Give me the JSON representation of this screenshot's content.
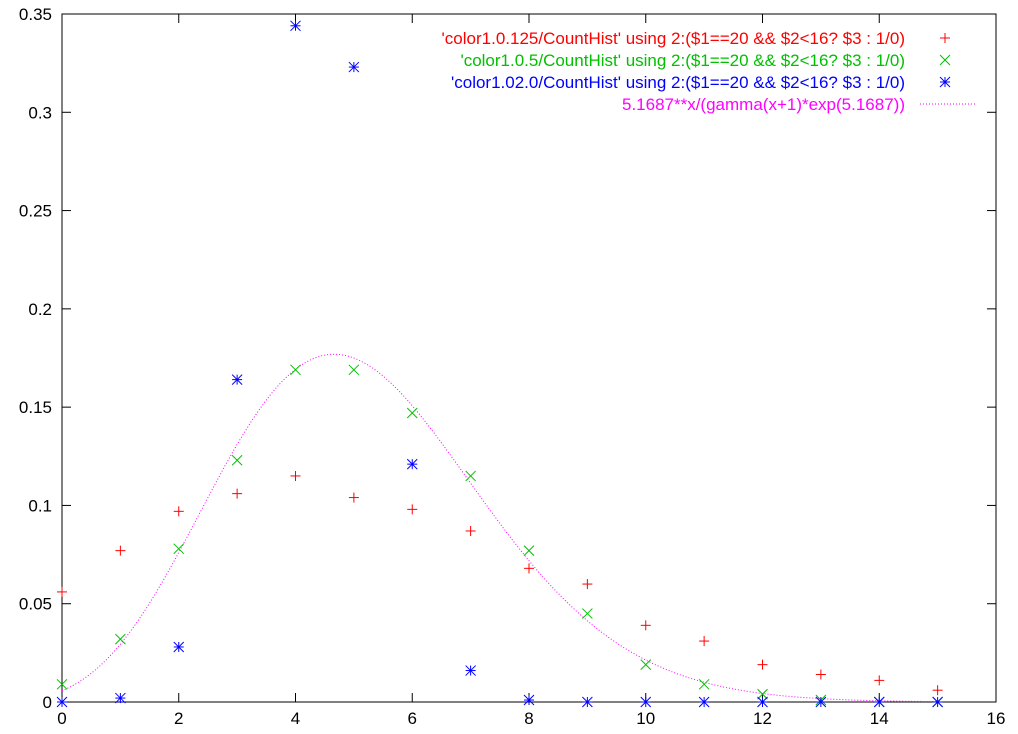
{
  "chart_data": {
    "type": "scatter",
    "title": "",
    "xlabel": "",
    "ylabel": "",
    "xlim": [
      0,
      16
    ],
    "ylim": [
      0,
      0.35
    ],
    "xticks": [
      0,
      2,
      4,
      6,
      8,
      10,
      12,
      14,
      16
    ],
    "yticks": [
      0,
      0.05,
      0.1,
      0.15,
      0.2,
      0.25,
      0.3,
      0.35
    ],
    "xtick_labels": [
      "0",
      "2",
      "4",
      "6",
      "8",
      "10",
      "12",
      "14",
      "16"
    ],
    "ytick_labels": [
      "0",
      "0.05",
      "0.1",
      "0.15",
      "0.2",
      "0.25",
      "0.3",
      "0.35"
    ],
    "grid": false,
    "legend_position": "top-right",
    "series": [
      {
        "name": "'color1.0.125/CountHist' using 2:($1==20 && $2<16? $3 : 1/0)",
        "marker": "plus",
        "color": "#ff0000",
        "x": [
          0,
          1,
          2,
          3,
          4,
          5,
          6,
          7,
          8,
          9,
          10,
          11,
          12,
          13,
          14,
          15
        ],
        "y": [
          0.056,
          0.077,
          0.097,
          0.106,
          0.115,
          0.104,
          0.098,
          0.087,
          0.068,
          0.06,
          0.039,
          0.031,
          0.019,
          0.014,
          0.011,
          0.006
        ]
      },
      {
        "name": "'color1.0.5/CountHist' using 2:($1==20 && $2<16? $3 : 1/0)",
        "marker": "cross",
        "color": "#00c000",
        "x": [
          0,
          1,
          2,
          3,
          4,
          5,
          6,
          7,
          8,
          9,
          10,
          11,
          12,
          13,
          14,
          15
        ],
        "y": [
          0.009,
          0.032,
          0.078,
          0.123,
          0.169,
          0.169,
          0.147,
          0.115,
          0.077,
          0.045,
          0.019,
          0.009,
          0.004,
          0.001,
          0.0,
          0.0
        ]
      },
      {
        "name": "'color1.02.0/CountHist' using 2:($1==20 && $2<16? $3 : 1/0)",
        "marker": "star",
        "color": "#0000ff",
        "x": [
          0,
          1,
          2,
          3,
          4,
          5,
          6,
          7,
          8,
          9,
          10,
          11,
          12,
          13,
          14,
          15
        ],
        "y": [
          0.0,
          0.002,
          0.028,
          0.164,
          0.344,
          0.323,
          0.121,
          0.016,
          0.001,
          0.0,
          0.0,
          0.0,
          0.0,
          0.0,
          0.0,
          0.0
        ]
      },
      {
        "name": "5.1687**x/(gamma(x+1)*exp(5.1687))",
        "type": "line",
        "style": "dotted",
        "color": "#ff00ff",
        "lambda": 5.1687
      }
    ]
  }
}
